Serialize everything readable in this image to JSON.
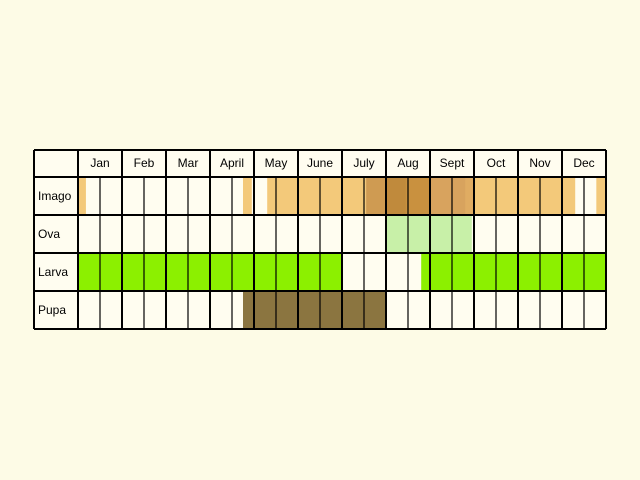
{
  "months": [
    "Jan",
    "Feb",
    "Mar",
    "April",
    "May",
    "June",
    "July",
    "Aug",
    "Sept",
    "Oct",
    "Nov",
    "Dec"
  ],
  "stages": [
    "Imago",
    "Ova",
    "Larva",
    "Pupa"
  ],
  "colors": {
    "background": "#fdfbe6",
    "cell": "#fffdf0",
    "grid": "#000000",
    "imago_light": "#f3c97a",
    "imago_mid": "#dba55f",
    "imago_dark": "#c9913f",
    "ova": "#c8f0a8",
    "larva": "#8cf000",
    "pupa": "#8b7540"
  },
  "activity": {
    "Imago": [
      [
        1,
        0,
        0,
        0,
        0,
        0,
        0,
        0,
        0,
        0,
        0,
        0,
        0,
        0,
        0,
        1,
        0,
        1,
        1,
        1,
        1,
        1,
        2,
        3,
        3,
        2,
        2,
        2,
        1,
        1,
        1,
        1,
        1,
        1,
        1,
        1,
        0,
        1
      ],
      "phenology period shading per half-month cell"
    ],
    "Ova": [
      0,
      0,
      0,
      0,
      0,
      0,
      0,
      0,
      0,
      0,
      0,
      0,
      0,
      0,
      0,
      0,
      0,
      0,
      0,
      0,
      0,
      0,
      0,
      0,
      1,
      1,
      1,
      1,
      1,
      0,
      0,
      0,
      0,
      0,
      0,
      0,
      0,
      0
    ],
    "Larva": [
      1,
      1,
      1,
      1,
      1,
      1,
      1,
      1,
      1,
      1,
      1,
      1,
      1,
      1,
      1,
      1,
      1,
      1,
      1,
      1,
      1,
      1,
      0,
      0,
      0,
      0,
      1,
      1,
      1,
      1,
      1,
      1,
      1,
      1,
      1,
      1,
      1,
      1
    ],
    "Pupa": [
      0,
      0,
      0,
      0,
      0,
      0,
      0,
      0,
      0,
      0,
      0,
      0,
      0,
      0,
      0,
      0,
      0,
      1,
      1,
      1,
      1,
      1,
      1,
      1,
      1,
      0,
      0,
      0,
      0,
      0,
      0,
      0,
      0,
      0,
      0,
      0,
      0,
      0
    ]
  }
}
